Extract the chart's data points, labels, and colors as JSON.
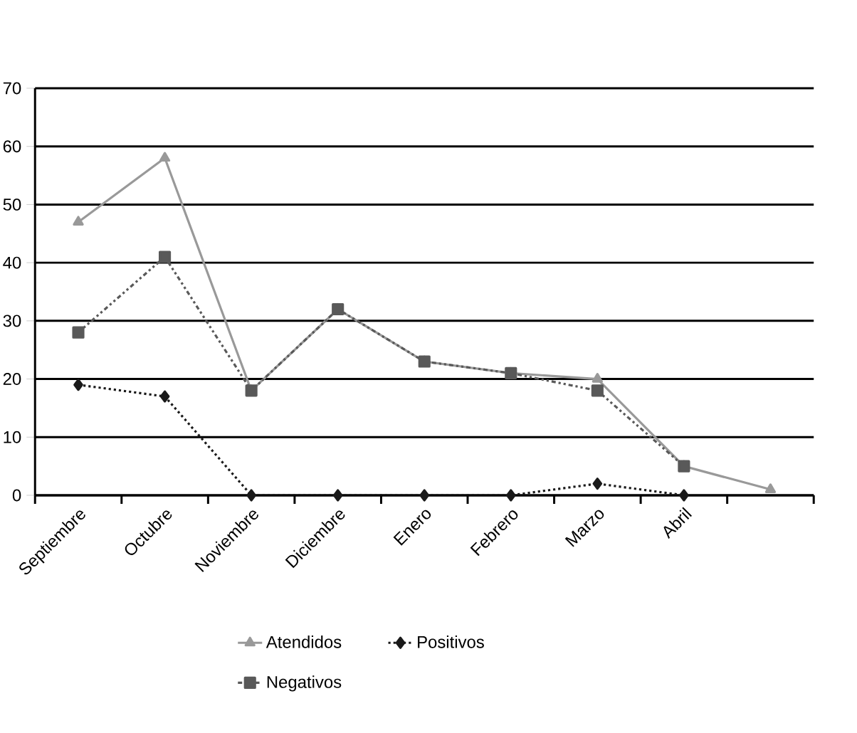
{
  "chart_data": {
    "type": "line",
    "categories": [
      "Septiembre",
      "Octubre",
      "Noviembre",
      "Diciembre",
      "Enero",
      "Febrero",
      "Marzo",
      "Abril",
      null
    ],
    "series": [
      {
        "name": "Atendidos",
        "color": "#999999",
        "marker": "triangle",
        "line_style": "solid",
        "values": [
          47,
          58,
          18,
          32,
          23,
          21,
          20,
          5,
          1
        ]
      },
      {
        "name": "Positivos",
        "color": "#1a1a1a",
        "marker": "diamond",
        "line_style": "dotted",
        "values": [
          19,
          17,
          0,
          0,
          0,
          0,
          2,
          0,
          null
        ]
      },
      {
        "name": "Negativos",
        "color": "#595959",
        "marker": "square",
        "line_style": "dashed",
        "values": [
          28,
          41,
          18,
          32,
          23,
          21,
          18,
          5,
          null
        ]
      }
    ],
    "ylim": [
      0,
      70
    ],
    "yticks": [
      0,
      10,
      20,
      30,
      40,
      50,
      60,
      70
    ],
    "grid": "y",
    "legend": "bottom"
  }
}
